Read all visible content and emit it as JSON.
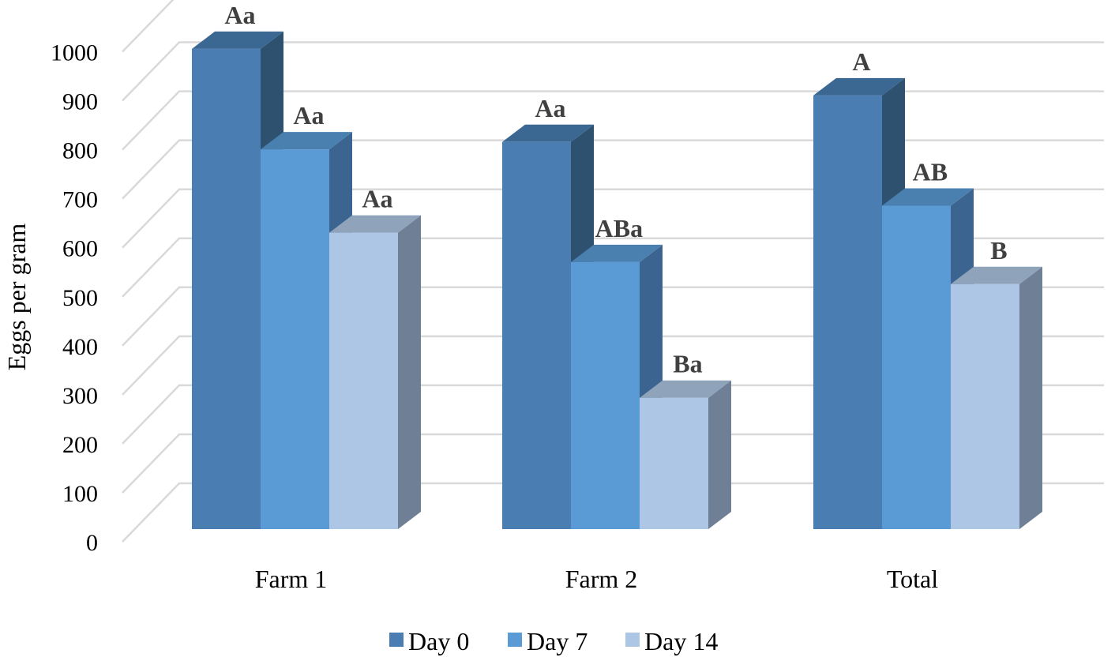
{
  "chart_data": {
    "type": "bar",
    "style": "3d-clustered-column",
    "title": "",
    "xlabel": "",
    "ylabel": "Eggs per gram",
    "ylim": [
      0,
      1000
    ],
    "yticks": [
      "0",
      "100",
      "200",
      "300",
      "400",
      "500",
      "600",
      "700",
      "800",
      "900",
      "1000"
    ],
    "grid": true,
    "legend_position": "bottom",
    "categories": [
      "Farm 1",
      "Farm 2",
      "Total"
    ],
    "series": [
      {
        "name": "Day 0",
        "values": [
          980,
          790,
          885
        ],
        "labels": [
          "Aa",
          "Aa",
          "A"
        ],
        "color": "#4a7eb3",
        "top_color": "#3b6793",
        "side_color": "#2f5170"
      },
      {
        "name": "Day 7",
        "values": [
          775,
          545,
          660
        ],
        "labels": [
          "Aa",
          "ABa",
          "AB"
        ],
        "color": "#5b9bd5",
        "top_color": "#4a80b0",
        "side_color": "#3b6590"
      },
      {
        "name": "Day 14",
        "values": [
          605,
          268,
          500
        ],
        "labels": [
          "Aa",
          "Ba",
          "B"
        ],
        "color": "#adc6e5",
        "top_color": "#8fa3bb",
        "side_color": "#6e7f96"
      }
    ]
  }
}
